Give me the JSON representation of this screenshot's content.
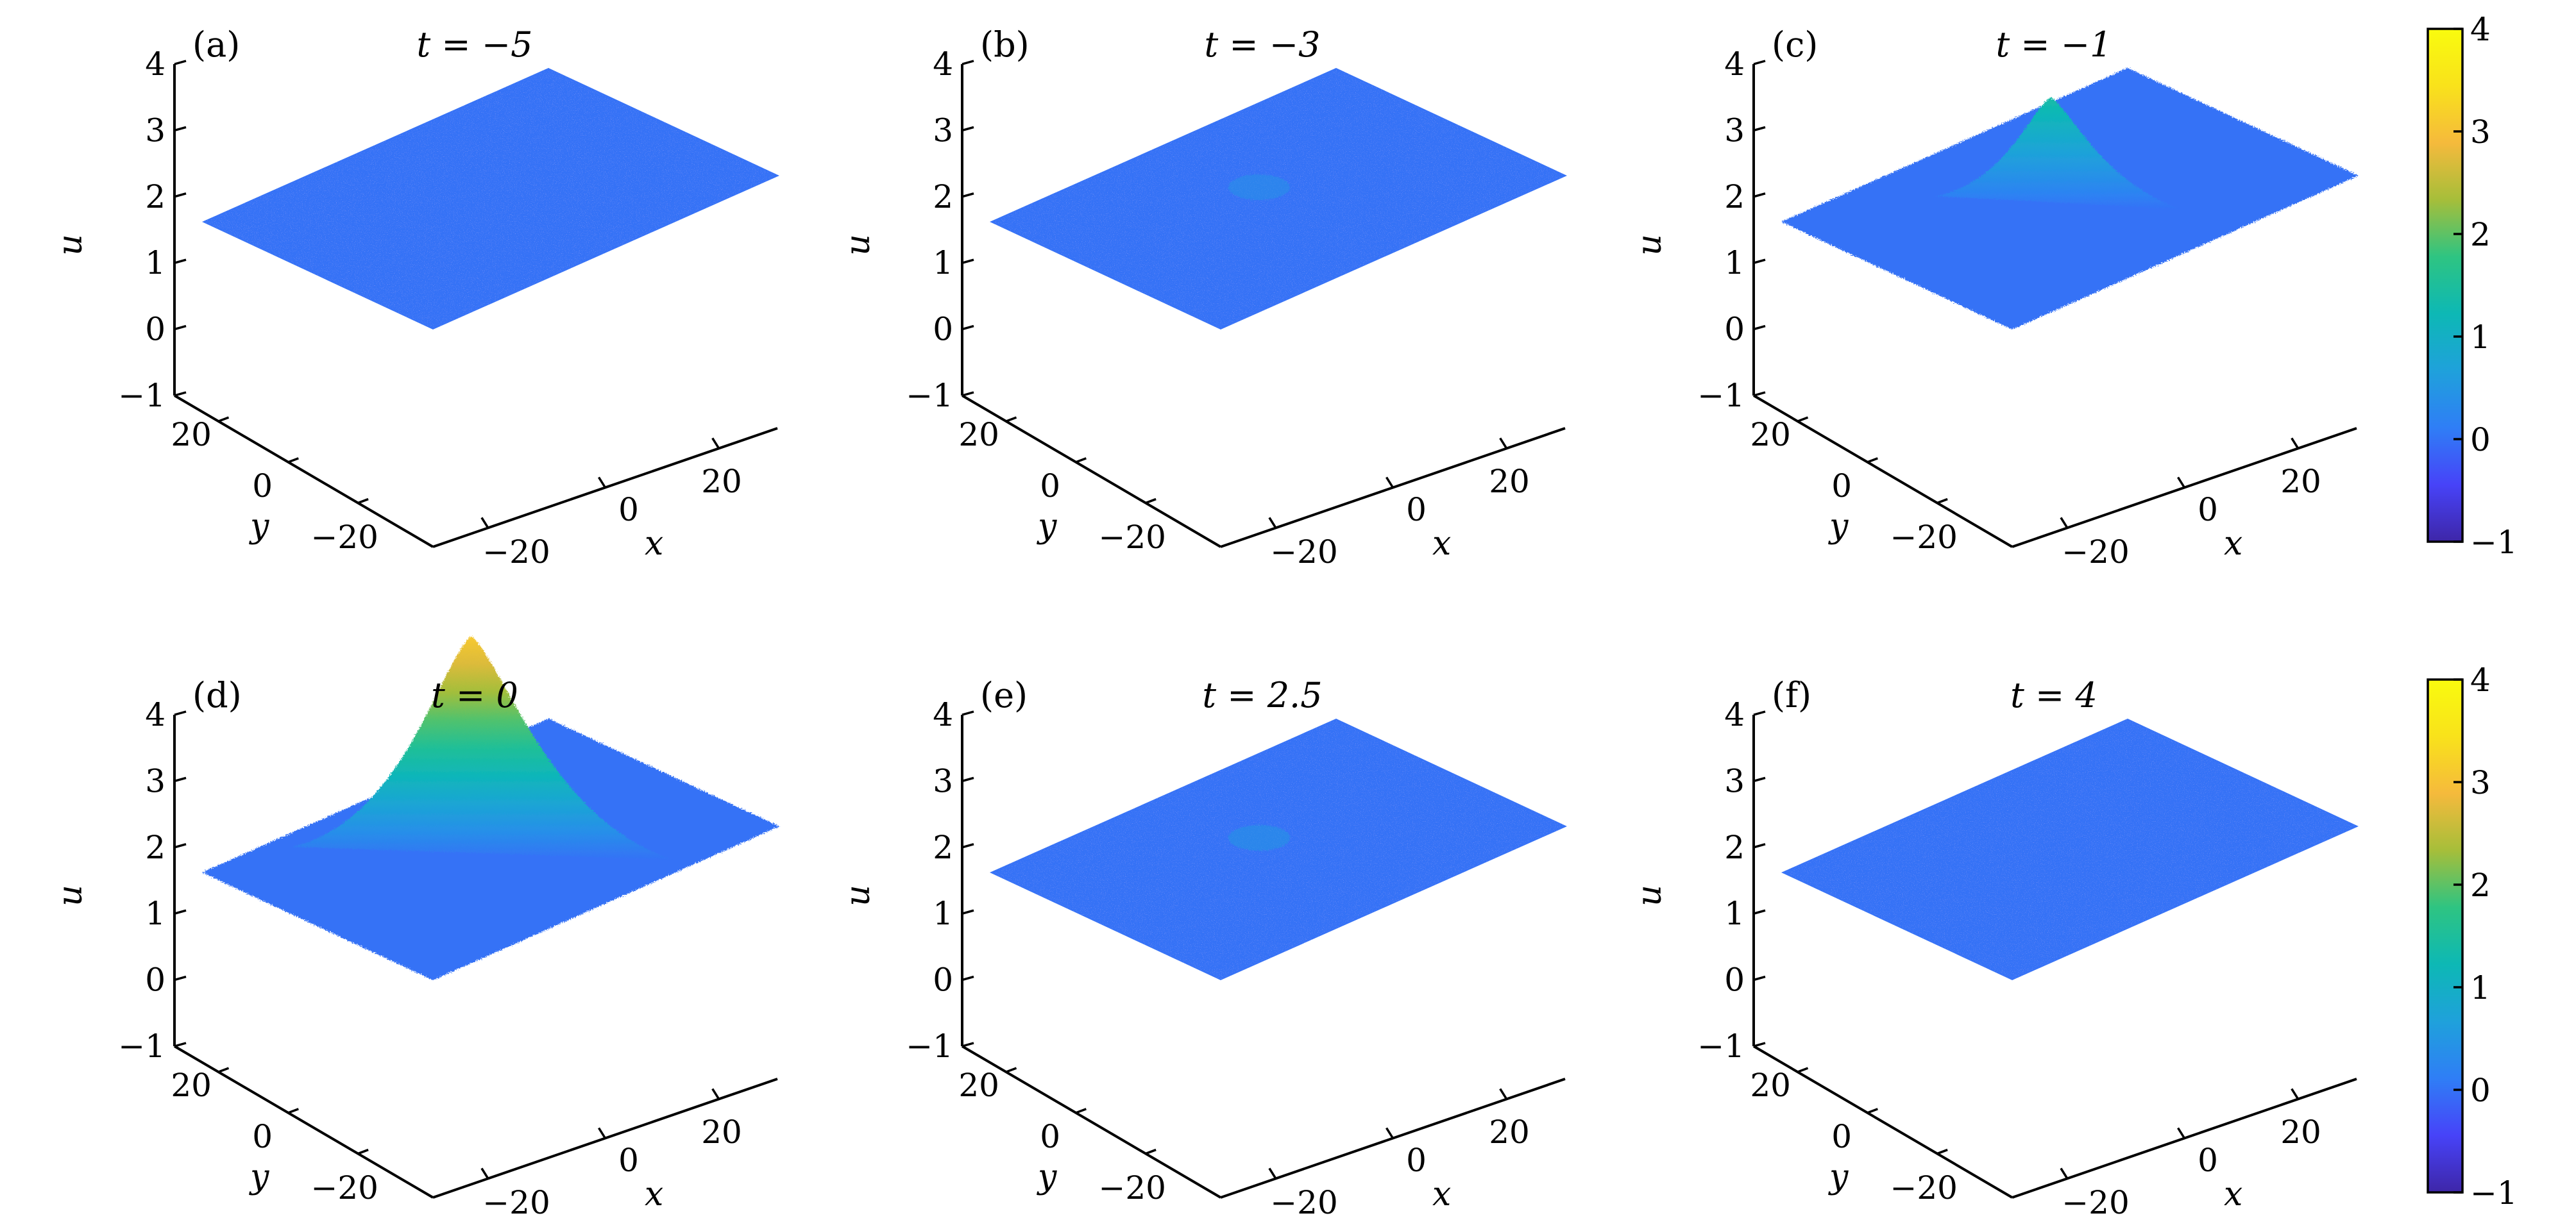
{
  "chart_data": [
    {
      "type": "surface3d",
      "panel_label": "(a)",
      "title": "t = −5",
      "t": -5,
      "peak_u": 0.05,
      "noise": 0.0,
      "xlabel": "x",
      "ylabel": "y",
      "zlabel": "u",
      "xlim": [
        -30,
        30
      ],
      "ylim": [
        -30,
        30
      ],
      "zlim": [
        -1,
        4
      ],
      "xticks": [
        "−20",
        "0",
        "20"
      ],
      "yticks": [
        "−20",
        "0",
        "20"
      ],
      "zticks": [
        "−1",
        "0",
        "1",
        "2",
        "3",
        "4"
      ]
    },
    {
      "type": "surface3d",
      "panel_label": "(b)",
      "title": "t = −3",
      "t": -3,
      "peak_u": 0.1,
      "noise": 0.05,
      "xlabel": "x",
      "ylabel": "y",
      "zlabel": "u",
      "xlim": [
        -30,
        30
      ],
      "ylim": [
        -30,
        30
      ],
      "zlim": [
        -1,
        4
      ],
      "xticks": [
        "−20",
        "0",
        "20"
      ],
      "yticks": [
        "−20",
        "0",
        "20"
      ],
      "zticks": [
        "−1",
        "0",
        "1",
        "2",
        "3",
        "4"
      ]
    },
    {
      "type": "surface3d",
      "panel_label": "(c)",
      "title": "t = −1",
      "t": -1,
      "peak_u": 1.4,
      "noise": 0.12,
      "xlabel": "x",
      "ylabel": "y",
      "zlabel": "u",
      "xlim": [
        -30,
        30
      ],
      "ylim": [
        -30,
        30
      ],
      "zlim": [
        -1,
        4
      ],
      "xticks": [
        "−20",
        "0",
        "20"
      ],
      "yticks": [
        "−20",
        "0",
        "20"
      ],
      "zticks": [
        "−1",
        "0",
        "1",
        "2",
        "3",
        "4"
      ]
    },
    {
      "type": "surface3d",
      "panel_label": "(d)",
      "title": "t = 0",
      "t": 0,
      "peak_u": 3.1,
      "noise": 0.15,
      "xlabel": "x",
      "ylabel": "y",
      "zlabel": "u",
      "xlim": [
        -30,
        30
      ],
      "ylim": [
        -30,
        30
      ],
      "zlim": [
        -1,
        4
      ],
      "xticks": [
        "−20",
        "0",
        "20"
      ],
      "yticks": [
        "−20",
        "0",
        "20"
      ],
      "zticks": [
        "−1",
        "0",
        "1",
        "2",
        "3",
        "4"
      ]
    },
    {
      "type": "surface3d",
      "panel_label": "(e)",
      "title": "t = 2.5",
      "t": 2.5,
      "peak_u": 0.15,
      "noise": 0.05,
      "xlabel": "x",
      "ylabel": "y",
      "zlabel": "u",
      "xlim": [
        -30,
        30
      ],
      "ylim": [
        -30,
        30
      ],
      "zlim": [
        -1,
        4
      ],
      "xticks": [
        "−20",
        "0",
        "20"
      ],
      "yticks": [
        "−20",
        "0",
        "20"
      ],
      "zticks": [
        "−1",
        "0",
        "1",
        "2",
        "3",
        "4"
      ]
    },
    {
      "type": "surface3d",
      "panel_label": "(f)",
      "title": "t = 4",
      "t": 4,
      "peak_u": 0.05,
      "noise": 0.0,
      "xlabel": "x",
      "ylabel": "y",
      "zlabel": "u",
      "xlim": [
        -30,
        30
      ],
      "ylim": [
        -30,
        30
      ],
      "zlim": [
        -1,
        4
      ],
      "xticks": [
        "−20",
        "0",
        "20"
      ],
      "yticks": [
        "−20",
        "0",
        "20"
      ],
      "zticks": [
        "−1",
        "0",
        "1",
        "2",
        "3",
        "4"
      ]
    }
  ],
  "colorbars": [
    {
      "range": [
        -1,
        4
      ],
      "ticks": [
        "−1",
        "0",
        "1",
        "2",
        "3",
        "4"
      ]
    },
    {
      "range": [
        -1,
        4
      ],
      "ticks": [
        "−1",
        "0",
        "1",
        "2",
        "3",
        "4"
      ]
    }
  ],
  "colormap": [
    "#3e26a8",
    "#4743f8",
    "#2f7ef6",
    "#1fa1db",
    "#0db8b5",
    "#2ec482",
    "#a6be3a",
    "#f5ba3c",
    "#f9e21b",
    "#f9fb0e"
  ]
}
